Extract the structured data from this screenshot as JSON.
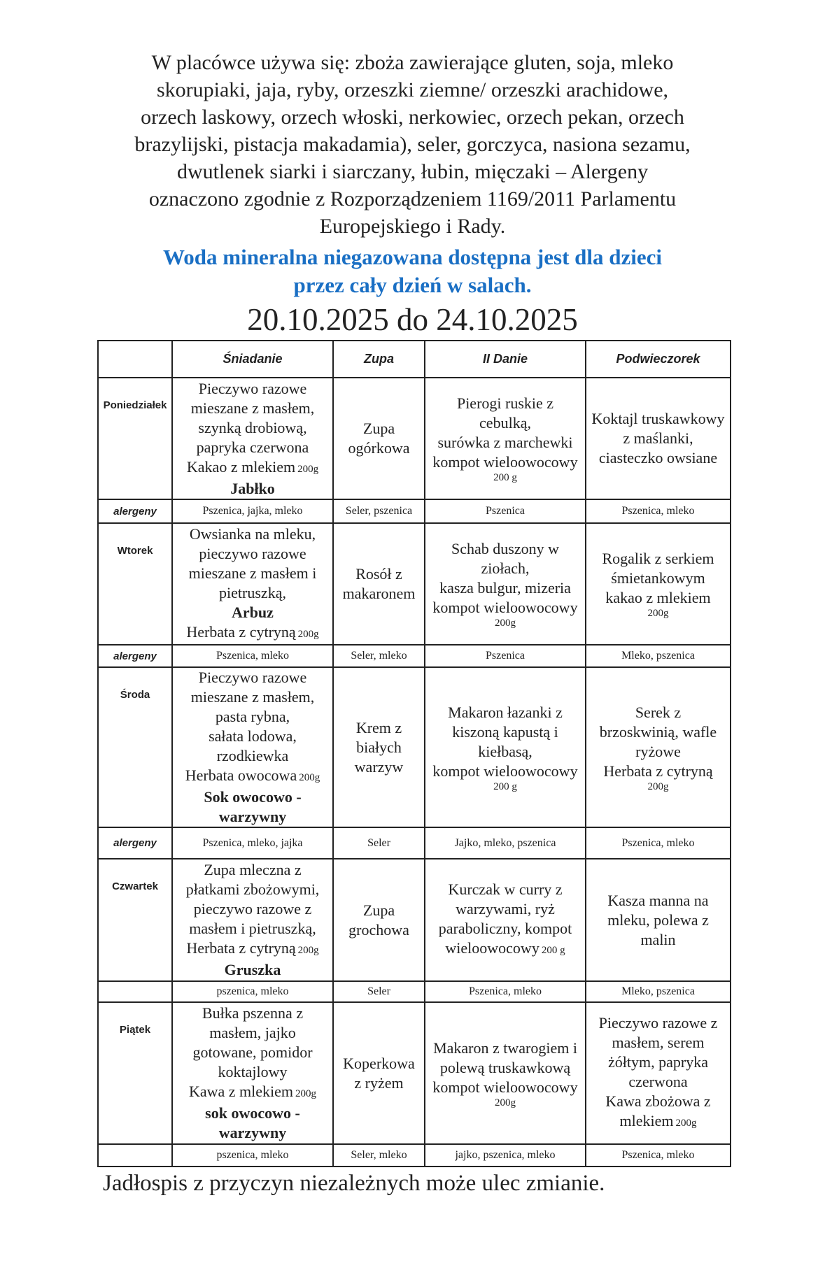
{
  "intro": [
    "W placówce używa się: zboża zawierające gluten, soja, mleko",
    "skorupiaki, jaja, ryby, orzeszki ziemne/ orzeszki arachidowe,",
    "orzech laskowy, orzech włoski, nerkowiec, orzech pekan, orzech",
    "brazylijski, pistacja makadamia), seler, gorczyca, nasiona sezamu,",
    "dwutlenek siarki i siarczany, łubin, mięczaki – Alergeny",
    "oznaczono zgodnie z Rozporządzeniem 1169/2011 Parlamentu",
    "Europejskiego i Rady."
  ],
  "water_note": [
    "Woda mineralna niegazowana dostępna jest dla dzieci",
    "przez cały dzień w salach."
  ],
  "date_range": "20.10.2025 do 24.10.2025",
  "table": {
    "header": [
      "Śniadanie",
      "Zupa",
      "II Danie",
      "Podwieczorek"
    ],
    "rows": [
      {
        "day": "Poniedziałek",
        "cells": [
          [
            "Pieczywo razowe",
            "mieszane z masłem,",
            "szynką drobiową,",
            "papryka czerwona",
            {
              "text": "Kakao z mlekiem",
              "note": "200g"
            },
            {
              "text": "Jabłko",
              "bold": true
            }
          ],
          [
            "Zupa",
            "ogórkowa"
          ],
          [
            "Pierogi ruskie z",
            "cebulką,",
            "surówka z marchewki",
            "kompot wieloowocowy",
            {
              "note": "200 g"
            }
          ],
          [
            "Koktajl truskawkowy",
            "z maślanki,",
            "ciasteczko owsiane"
          ]
        ],
        "allergen_label": "alergeny",
        "allergens": [
          "Pszenica, jajka, mleko",
          "Seler, pszenica",
          "Pszenica",
          "Pszenica, mleko"
        ]
      },
      {
        "day": "Wtorek",
        "cells": [
          [
            "Owsianka na mleku,",
            "pieczywo razowe",
            "mieszane z masłem i",
            "pietruszką,",
            {
              "text": "Arbuz",
              "bold": true
            },
            {
              "text": "Herbata z cytryną",
              "note": "200g"
            }
          ],
          [
            "Rosół z",
            "makaronem"
          ],
          [
            "Schab duszony w",
            "ziołach,",
            "kasza bulgur, mizeria",
            "kompot wieloowocowy",
            {
              "note": "200g"
            }
          ],
          [
            "Rogalik z serkiem",
            "śmietankowym",
            "kakao  z mlekiem",
            {
              "note": "200g"
            }
          ]
        ],
        "allergen_label": "alergeny",
        "allergens": [
          "Pszenica, mleko",
          "Seler, mleko",
          "Pszenica",
          "Mleko, pszenica"
        ]
      },
      {
        "day": "Środa",
        "cells": [
          [
            "Pieczywo razowe",
            "mieszane z masłem,",
            "pasta rybna,",
            "sałata lodowa,",
            "rzodkiewka",
            {
              "text": "Herbata owocowa",
              "note": "200g"
            },
            {
              "text": "Sok owocowo -",
              "bold": true
            },
            {
              "text": "warzywny",
              "bold": true
            }
          ],
          [
            "Krem z",
            "białych",
            "warzyw"
          ],
          [
            "Makaron łazanki z",
            "kiszoną kapustą i",
            "kiełbasą,",
            "kompot wieloowocowy",
            {
              "note": "200 g"
            }
          ],
          [
            "Serek z",
            "brzoskwinią, wafle",
            "ryżowe",
            "Herbata z cytryną",
            {
              "note": "200g"
            }
          ]
        ],
        "allergen_label": "alergeny",
        "allergens": [
          "Pszenica, mleko, jajka",
          "Seler",
          "Jajko, mleko, pszenica",
          "Pszenica, mleko"
        ]
      },
      {
        "day": "Czwartek",
        "cells": [
          [
            "Zupa mleczna z",
            "płatkami zbożowymi,",
            "pieczywo razowe z",
            "masłem i pietruszką,",
            {
              "text": "Herbata z cytryną",
              "note": "200g"
            },
            {
              "text": "Gruszka",
              "bold": true
            }
          ],
          [
            "Zupa",
            "grochowa"
          ],
          [
            "Kurczak w curry z",
            "warzywami, ryż",
            "paraboliczny, kompot",
            {
              "text": "wieloowocowy",
              "note": "200 g"
            }
          ],
          [
            "Kasza manna na",
            "mleku, polewa z",
            "malin"
          ]
        ],
        "allergen_label": null,
        "allergens": [
          "pszenica, mleko",
          "Seler",
          "Pszenica, mleko",
          "Mleko, pszenica"
        ]
      },
      {
        "day": "Piątek",
        "cells": [
          [
            "Bułka pszenna z",
            "masłem, jajko",
            "gotowane, pomidor",
            "koktajlowy",
            {
              "text": "Kawa z mlekiem",
              "note": "200g"
            },
            {
              "text": "sok owocowo -",
              "bold": true
            },
            {
              "text": "warzywny",
              "bold": true
            }
          ],
          [
            "Koperkowa",
            "z ryżem"
          ],
          [
            "Makaron z twarogiem i",
            "polewą truskawkową",
            "kompot wieloowocowy",
            {
              "note": "200g"
            }
          ],
          [
            "Pieczywo razowe z",
            "masłem, serem",
            "żółtym, papryka",
            "czerwona",
            "Kawa zbożowa z",
            {
              "text": "mlekiem",
              "note": "200g"
            }
          ]
        ],
        "allergen_label": null,
        "allergens": [
          "pszenica, mleko",
          "Seler, mleko",
          "jajko, pszenica, mleko",
          "Pszenica, mleko"
        ]
      }
    ]
  },
  "footer": "Jadłospis z przyczyn niezależnych może ulec zmianie."
}
